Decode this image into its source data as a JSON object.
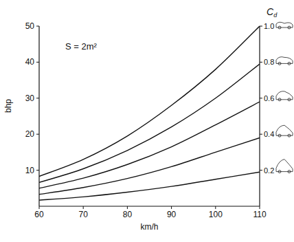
{
  "chart_data": {
    "type": "line",
    "x_label": "km/h",
    "y_label": "bhp",
    "y2_label": "Cd",
    "annotations": [
      {
        "text": "S = 2m²"
      }
    ],
    "x": [
      60,
      70,
      80,
      90,
      100,
      110
    ],
    "series": [
      {
        "color": "#111111",
        "values": [
          8.3,
          13,
          19.5,
          28,
          38,
          50
        ]
      },
      {
        "color": "#111111",
        "values": [
          6.6,
          10.4,
          15.5,
          22,
          30,
          39.5
        ]
      },
      {
        "color": "#111111",
        "values": [
          5,
          7.8,
          11.6,
          16.5,
          22.6,
          29
        ]
      },
      {
        "color": "#111111",
        "values": [
          3.3,
          5.2,
          7.7,
          11,
          15,
          19
        ]
      },
      {
        "color": "#111111",
        "values": [
          1.7,
          2.6,
          3.9,
          5.5,
          7.5,
          9.5
        ]
      }
    ],
    "xlim": [
      60,
      110
    ],
    "xticks": [
      60,
      70,
      80,
      90,
      100,
      110
    ],
    "ylim": [
      0,
      50
    ],
    "yticks": [
      10,
      20,
      30,
      40,
      50
    ],
    "y2lim": [
      0,
      1
    ],
    "y2ticks": [
      0.2,
      0.4,
      0.6,
      0.8,
      {
        "value": 1,
        "label": "1.0"
      }
    ],
    "grid": false
  }
}
